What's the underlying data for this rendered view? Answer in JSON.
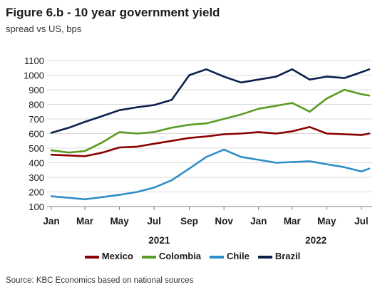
{
  "title": "Figure 6.b - 10 year government yield",
  "subtitle": "spread vs US, bps",
  "source": "Source: KBC Economics based on national sources",
  "chart_data": {
    "type": "line",
    "x_ticks": [
      "Jan",
      "Mar",
      "May",
      "Jul",
      "Sep",
      "Nov",
      "Jan",
      "Mar",
      "May",
      "Jul"
    ],
    "year_labels": [
      {
        "label": "2021",
        "position": "Jul 2021"
      },
      {
        "label": "2022",
        "position": "Apr 2022"
      }
    ],
    "y_ticks": [
      100,
      200,
      300,
      400,
      500,
      600,
      700,
      800,
      900,
      1000,
      1100
    ],
    "ylim": [
      100,
      1100
    ],
    "grid": "horizontal",
    "legend_position": "bottom",
    "x": [
      "2021-01-01",
      "2021-02-01",
      "2021-03-01",
      "2021-04-01",
      "2021-05-01",
      "2021-06-01",
      "2021-07-01",
      "2021-08-01",
      "2021-09-01",
      "2021-10-01",
      "2021-11-01",
      "2021-12-01",
      "2022-01-01",
      "2022-02-01",
      "2022-03-01",
      "2022-04-01",
      "2022-05-01",
      "2022-06-01",
      "2022-07-01",
      "2022-07-15"
    ],
    "series": [
      {
        "name": "Mexico",
        "color": "#8b0000",
        "values": [
          455,
          450,
          445,
          470,
          505,
          510,
          530,
          550,
          570,
          580,
          595,
          600,
          610,
          600,
          615,
          645,
          600,
          595,
          590,
          600
        ]
      },
      {
        "name": "Colombia",
        "color": "#5a9b23",
        "values": [
          485,
          470,
          480,
          540,
          610,
          600,
          610,
          640,
          660,
          670,
          700,
          730,
          770,
          790,
          810,
          750,
          840,
          900,
          870,
          860
        ]
      },
      {
        "name": "Chile",
        "color": "#2e8ec7",
        "values": [
          170,
          160,
          150,
          165,
          180,
          200,
          230,
          280,
          360,
          440,
          490,
          440,
          420,
          400,
          405,
          410,
          390,
          370,
          340,
          360
        ]
      },
      {
        "name": "Brazil",
        "color": "#0b1f4d",
        "values": [
          605,
          640,
          680,
          720,
          760,
          780,
          795,
          830,
          1000,
          1040,
          990,
          950,
          970,
          990,
          1040,
          970,
          990,
          980,
          1020,
          1040
        ]
      }
    ]
  }
}
